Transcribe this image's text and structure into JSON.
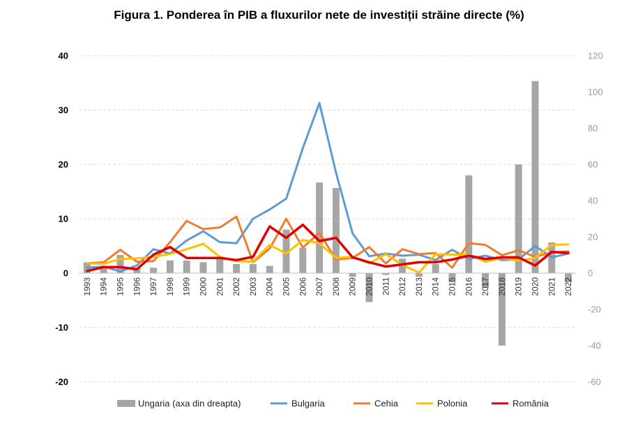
{
  "chart_data": {
    "type": "line",
    "title": "Figura 1. Ponderea în PIB a fluxurilor nete de investiții străine directe (%)",
    "xlabel": "",
    "ylabel": "",
    "categories": [
      "1993",
      "1994",
      "1995",
      "1996",
      "1997",
      "1998",
      "1999",
      "2000",
      "2001",
      "2002",
      "2003",
      "2004",
      "2005",
      "2006",
      "2007",
      "2008",
      "2009",
      "2010",
      "2011",
      "2012",
      "2013",
      "2014",
      "2015",
      "2016",
      "2017",
      "2018",
      "2019",
      "2020",
      "2021",
      "2022"
    ],
    "ylim": [
      -20,
      40
    ],
    "yticks": [
      40,
      30,
      20,
      10,
      0,
      -10,
      -20
    ],
    "ylim_right": [
      -60,
      120
    ],
    "yticks_right": [
      120,
      100,
      80,
      60,
      40,
      20,
      0,
      -20,
      -40,
      -60
    ],
    "grid": true,
    "legend_position": "bottom",
    "bar_series": {
      "name": "Ungaria (axa din dreapta)",
      "axis": "right",
      "color": "#a6a6a6",
      "values": [
        6,
        4,
        10,
        3,
        3,
        7,
        7,
        6,
        8,
        5,
        5,
        4,
        24,
        14,
        50,
        47,
        -2,
        -16,
        -1,
        8,
        -2,
        5,
        -5,
        54,
        -8,
        -40,
        60,
        106,
        17,
        -5
      ]
    },
    "series": [
      {
        "name": "Bulgaria",
        "color": "#5b9bd5",
        "values": [
          1.0,
          1.2,
          0.3,
          1.4,
          4.4,
          3.6,
          6.0,
          7.7,
          5.7,
          5.5,
          10.0,
          11.7,
          13.7,
          23.0,
          31.3,
          18.5,
          7.3,
          3.1,
          3.6,
          3.2,
          3.4,
          2.4,
          4.3,
          2.6,
          3.2,
          2.4,
          2.5,
          5.0,
          2.9,
          3.6
        ]
      },
      {
        "name": "Cehia",
        "color": "#ed7d31",
        "values": [
          1.8,
          2.0,
          4.3,
          2.1,
          2.2,
          5.7,
          9.6,
          8.1,
          8.4,
          10.4,
          2.0,
          4.5,
          10.0,
          4.7,
          7.4,
          2.5,
          2.8,
          4.8,
          1.8,
          4.4,
          3.5,
          3.7,
          1.0,
          5.5,
          5.2,
          3.3,
          4.2,
          3.0,
          3.8,
          4.0
        ]
      },
      {
        "name": "Polonia",
        "color": "#ffc000",
        "values": [
          1.8,
          1.7,
          2.6,
          2.7,
          3.0,
          3.5,
          4.4,
          5.4,
          3.0,
          2.2,
          2.1,
          5.2,
          3.6,
          6.1,
          5.5,
          2.8,
          3.0,
          1.8,
          3.5,
          1.5,
          0.1,
          3.5,
          3.4,
          3.4,
          2.1,
          2.8,
          2.3,
          2.8,
          5.2,
          5.3
        ]
      },
      {
        "name": "România",
        "color": "#e00000",
        "values": [
          0.4,
          1.1,
          1.1,
          0.7,
          3.4,
          4.8,
          2.8,
          2.8,
          2.8,
          2.4,
          3.0,
          8.6,
          6.5,
          8.9,
          5.9,
          6.5,
          2.9,
          2.0,
          1.2,
          1.6,
          2.0,
          2.0,
          2.5,
          3.2,
          2.6,
          2.9,
          2.9,
          1.4,
          3.9,
          3.7
        ]
      }
    ]
  }
}
